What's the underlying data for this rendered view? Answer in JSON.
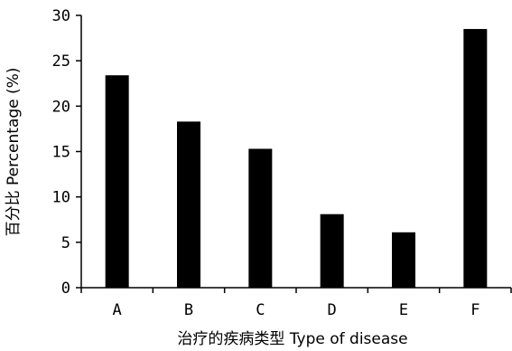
{
  "chart_data": {
    "type": "bar",
    "categories": [
      "A",
      "B",
      "C",
      "D",
      "E",
      "F"
    ],
    "values": [
      23.4,
      18.3,
      15.3,
      8.1,
      6.1,
      28.5
    ],
    "xlabel": "治疗的疾病类型 Type of disease",
    "ylabel": "百分比 Percentage (%)",
    "ylim": [
      0,
      30
    ],
    "yticks": [
      0,
      5,
      10,
      15,
      20,
      25,
      30
    ],
    "grid": false,
    "bar_color": "#000000",
    "axis_color": "#000000"
  }
}
